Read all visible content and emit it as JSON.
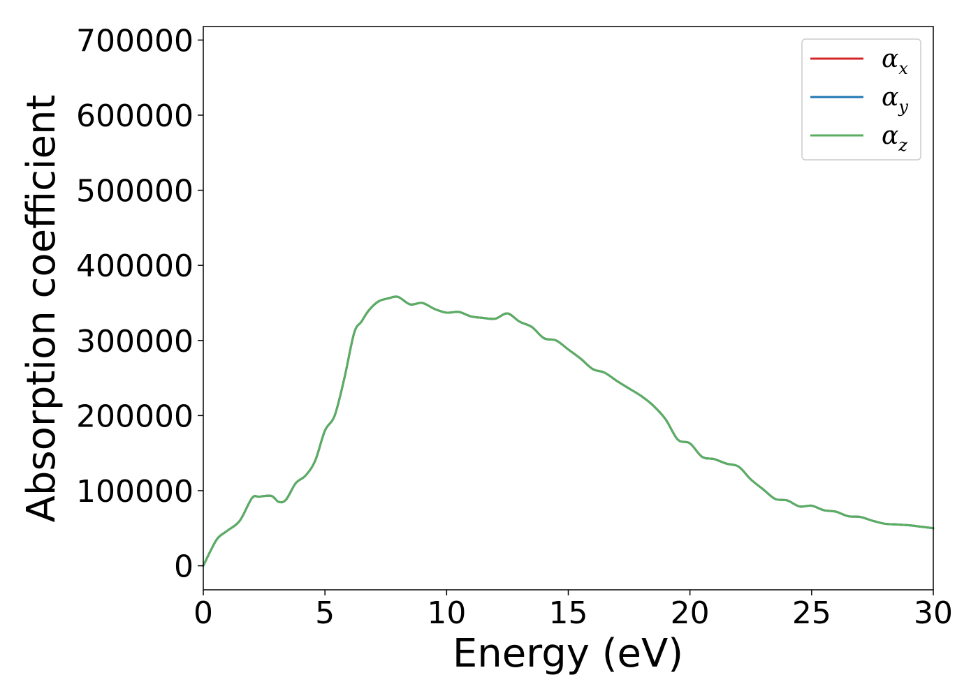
{
  "chart_data": {
    "type": "line",
    "xlabel": "Energy (eV)",
    "ylabel": "Absorption coefficient",
    "xlim": [
      0,
      30
    ],
    "ylim": [
      -32000,
      718000
    ],
    "xticks": [
      0,
      5,
      10,
      15,
      20,
      25,
      30
    ],
    "yticks": [
      0,
      100000,
      200000,
      300000,
      400000,
      500000,
      600000,
      700000
    ],
    "grid": false,
    "legend_position": "top-right",
    "x": [
      0,
      0.3,
      0.6,
      1.0,
      1.5,
      2.0,
      2.3,
      2.8,
      3.1,
      3.4,
      3.8,
      4.2,
      4.6,
      5.0,
      5.4,
      5.8,
      6.2,
      6.5,
      6.8,
      7.2,
      7.6,
      8.0,
      8.5,
      9.0,
      9.5,
      10.0,
      10.5,
      11.0,
      11.5,
      12.0,
      12.5,
      13.0,
      13.5,
      14.0,
      14.5,
      15.0,
      15.5,
      16.0,
      16.5,
      17.0,
      17.5,
      18.0,
      18.5,
      19.0,
      19.5,
      20.0,
      20.5,
      21.0,
      21.5,
      22.0,
      22.5,
      23.0,
      23.5,
      24.0,
      24.5,
      25.0,
      25.5,
      26.0,
      26.5,
      27.0,
      27.5,
      28.0,
      28.5,
      29.0,
      29.5,
      30.0
    ],
    "series": [
      {
        "name": "α_x",
        "color": "#d62728",
        "values": [
          0,
          20000,
          37000,
          47000,
          60000,
          90000,
          92000,
          93000,
          85000,
          88000,
          110000,
          120000,
          140000,
          180000,
          200000,
          250000,
          310000,
          325000,
          340000,
          352000,
          356000,
          358000,
          348000,
          350000,
          342000,
          337000,
          338000,
          332000,
          330000,
          329000,
          336000,
          325000,
          318000,
          303000,
          300000,
          288000,
          276000,
          262000,
          257000,
          246000,
          236000,
          226000,
          213000,
          195000,
          168000,
          163000,
          145000,
          142000,
          136000,
          132000,
          115000,
          102000,
          89000,
          87000,
          79000,
          80000,
          74000,
          72000,
          66000,
          65000,
          60000,
          56000,
          55000,
          54000,
          52000,
          50000
        ]
      },
      {
        "name": "α_y",
        "color": "#1f77b4",
        "values": [
          0,
          20000,
          37000,
          47000,
          60000,
          90000,
          92000,
          93000,
          85000,
          88000,
          110000,
          120000,
          140000,
          180000,
          200000,
          250000,
          310000,
          325000,
          340000,
          352000,
          356000,
          358000,
          348000,
          350000,
          342000,
          337000,
          338000,
          332000,
          330000,
          329000,
          336000,
          325000,
          318000,
          303000,
          300000,
          288000,
          276000,
          262000,
          257000,
          246000,
          236000,
          226000,
          213000,
          195000,
          168000,
          163000,
          145000,
          142000,
          136000,
          132000,
          115000,
          102000,
          89000,
          87000,
          79000,
          80000,
          74000,
          72000,
          66000,
          65000,
          60000,
          56000,
          55000,
          54000,
          52000,
          50000
        ]
      },
      {
        "name": "α_z",
        "color": "#5aae61",
        "values": [
          0,
          20000,
          37000,
          47000,
          60000,
          90000,
          92000,
          93000,
          85000,
          88000,
          110000,
          120000,
          140000,
          180000,
          200000,
          250000,
          310000,
          325000,
          340000,
          352000,
          356000,
          358000,
          348000,
          350000,
          342000,
          337000,
          338000,
          332000,
          330000,
          329000,
          336000,
          325000,
          318000,
          303000,
          300000,
          288000,
          276000,
          262000,
          257000,
          246000,
          236000,
          226000,
          213000,
          195000,
          168000,
          163000,
          145000,
          142000,
          136000,
          132000,
          115000,
          102000,
          89000,
          87000,
          79000,
          80000,
          74000,
          72000,
          66000,
          65000,
          60000,
          56000,
          55000,
          54000,
          52000,
          50000
        ]
      }
    ]
  }
}
